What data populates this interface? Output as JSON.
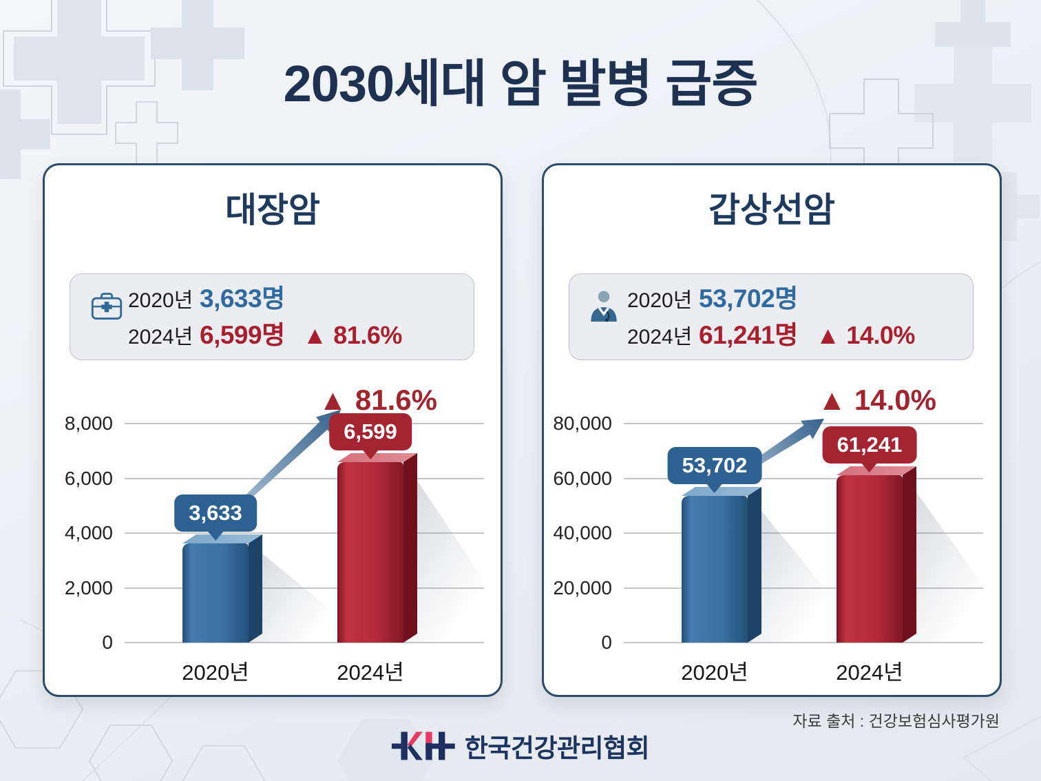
{
  "title": "2030세대 암 발병 급증",
  "panels": [
    {
      "title": "대장암",
      "icon": "medical-bag-icon",
      "stats": [
        {
          "year": "2020년",
          "value": "3,633명"
        },
        {
          "year": "2024년",
          "value": "6,599명",
          "delta": "▲ 81.6%"
        }
      ]
    },
    {
      "title": "갑상선암",
      "icon": "doctor-icon",
      "stats": [
        {
          "year": "2020년",
          "value": "53,702명"
        },
        {
          "year": "2024년",
          "value": "61,241명",
          "delta": "▲ 14.0%"
        }
      ]
    }
  ],
  "chart_data": [
    {
      "type": "bar",
      "title": "대장암",
      "categories": [
        "2020년",
        "2024년"
      ],
      "values": [
        3633,
        6599
      ],
      "bar_labels": [
        "3,633",
        "6,599"
      ],
      "delta_label": "▲ 81.6%",
      "ylabel": "명",
      "ylim": [
        0,
        8000
      ],
      "yticks": [
        8000,
        6000,
        4000,
        2000,
        0
      ],
      "ytick_labels": [
        "8,000",
        "6,000",
        "4,000",
        "2,000",
        "0"
      ],
      "grid": true,
      "legend": false,
      "bar_colors": [
        "#3a70a2",
        "#b02a39"
      ]
    },
    {
      "type": "bar",
      "title": "갑상선암",
      "categories": [
        "2020년",
        "2024년"
      ],
      "values": [
        53702,
        61241
      ],
      "bar_labels": [
        "53,702",
        "61,241"
      ],
      "delta_label": "▲ 14.0%",
      "ylabel": "명",
      "ylim": [
        0,
        80000
      ],
      "yticks": [
        80000,
        60000,
        40000,
        20000,
        0
      ],
      "ytick_labels": [
        "80,000",
        "60,000",
        "40,000",
        "20,000",
        "0"
      ],
      "grid": true,
      "legend": false,
      "bar_colors": [
        "#3a70a2",
        "#b02a39"
      ]
    }
  ],
  "footer": {
    "source": "자료 출처 : 건강보험심사평가원",
    "logo_mark": "KH",
    "logo_text": "한국건강관리협회"
  },
  "colors": {
    "navy": "#1e3150",
    "blue": "#2f6ba1",
    "red": "#a81f2e",
    "panel_border": "#2b4d6b",
    "callout_blue": "#2d6191",
    "callout_red": "#a42531",
    "arrow": "#36618c",
    "background": "#edf0f4"
  }
}
